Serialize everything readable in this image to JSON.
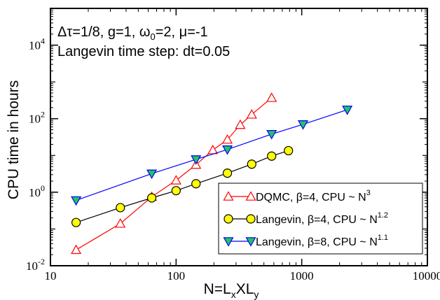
{
  "chart_data": {
    "type": "line",
    "xscale": "log",
    "yscale": "log",
    "xlim": [
      10,
      10000
    ],
    "ylim": [
      0.01,
      100000
    ],
    "x_ticks": [
      {
        "value": 10,
        "label": "10"
      },
      {
        "value": 100,
        "label": "100"
      },
      {
        "value": 1000,
        "label": "1000"
      },
      {
        "value": 10000,
        "label": "10000"
      }
    ],
    "y_ticks": [
      {
        "value": 0.01,
        "base": "10",
        "exp": "-2"
      },
      {
        "value": 1,
        "base": "10",
        "exp": "0"
      },
      {
        "value": 100,
        "base": "10",
        "exp": "2"
      },
      {
        "value": 10000,
        "base": "10",
        "exp": "4"
      }
    ],
    "xlabel": {
      "main": "N=L",
      "sub1": "x",
      "mid": "XL",
      "sub2": "y"
    },
    "ylabel": "CPU time in hours",
    "grid": false,
    "annotations": {
      "params": "Δτ=1/8, g=1, ω",
      "params_sub": "0",
      "params_tail": "=2, μ=-1",
      "langevin_step": "Langevin time step: dt=0.05"
    },
    "legend_position": "bottom-right",
    "series": [
      {
        "name": "DQMC, β=4, CPU  ~  N",
        "name_exp": "3",
        "color": "#ff0000",
        "marker": "triangle-up",
        "marker_fill": "none",
        "x": [
          16,
          36,
          64,
          100,
          144,
          196,
          256,
          324,
          400,
          576
        ],
        "y": [
          0.027,
          0.14,
          0.75,
          2.1,
          5.6,
          14,
          27,
          68,
          130,
          370
        ]
      },
      {
        "name": "Langevin, β=4, CPU ~ N",
        "name_exp": "1.2",
        "color": "#000000",
        "marker": "circle",
        "marker_fill": "#ffff00",
        "x": [
          16,
          36,
          64,
          100,
          144,
          256,
          400,
          576,
          784
        ],
        "y": [
          0.15,
          0.38,
          0.7,
          1.1,
          1.7,
          3.3,
          5.8,
          9.6,
          13.5
        ]
      },
      {
        "name": "Langevin, β=8, CPU ~ N",
        "name_exp": "1.1",
        "color": "#0000ff",
        "marker": "triangle-down",
        "marker_fill": "#22c55e",
        "x": [
          16,
          64,
          144,
          256,
          576,
          1024,
          2304
        ],
        "y": [
          0.6,
          3.2,
          7.8,
          14.5,
          38,
          70,
          175
        ]
      }
    ]
  }
}
